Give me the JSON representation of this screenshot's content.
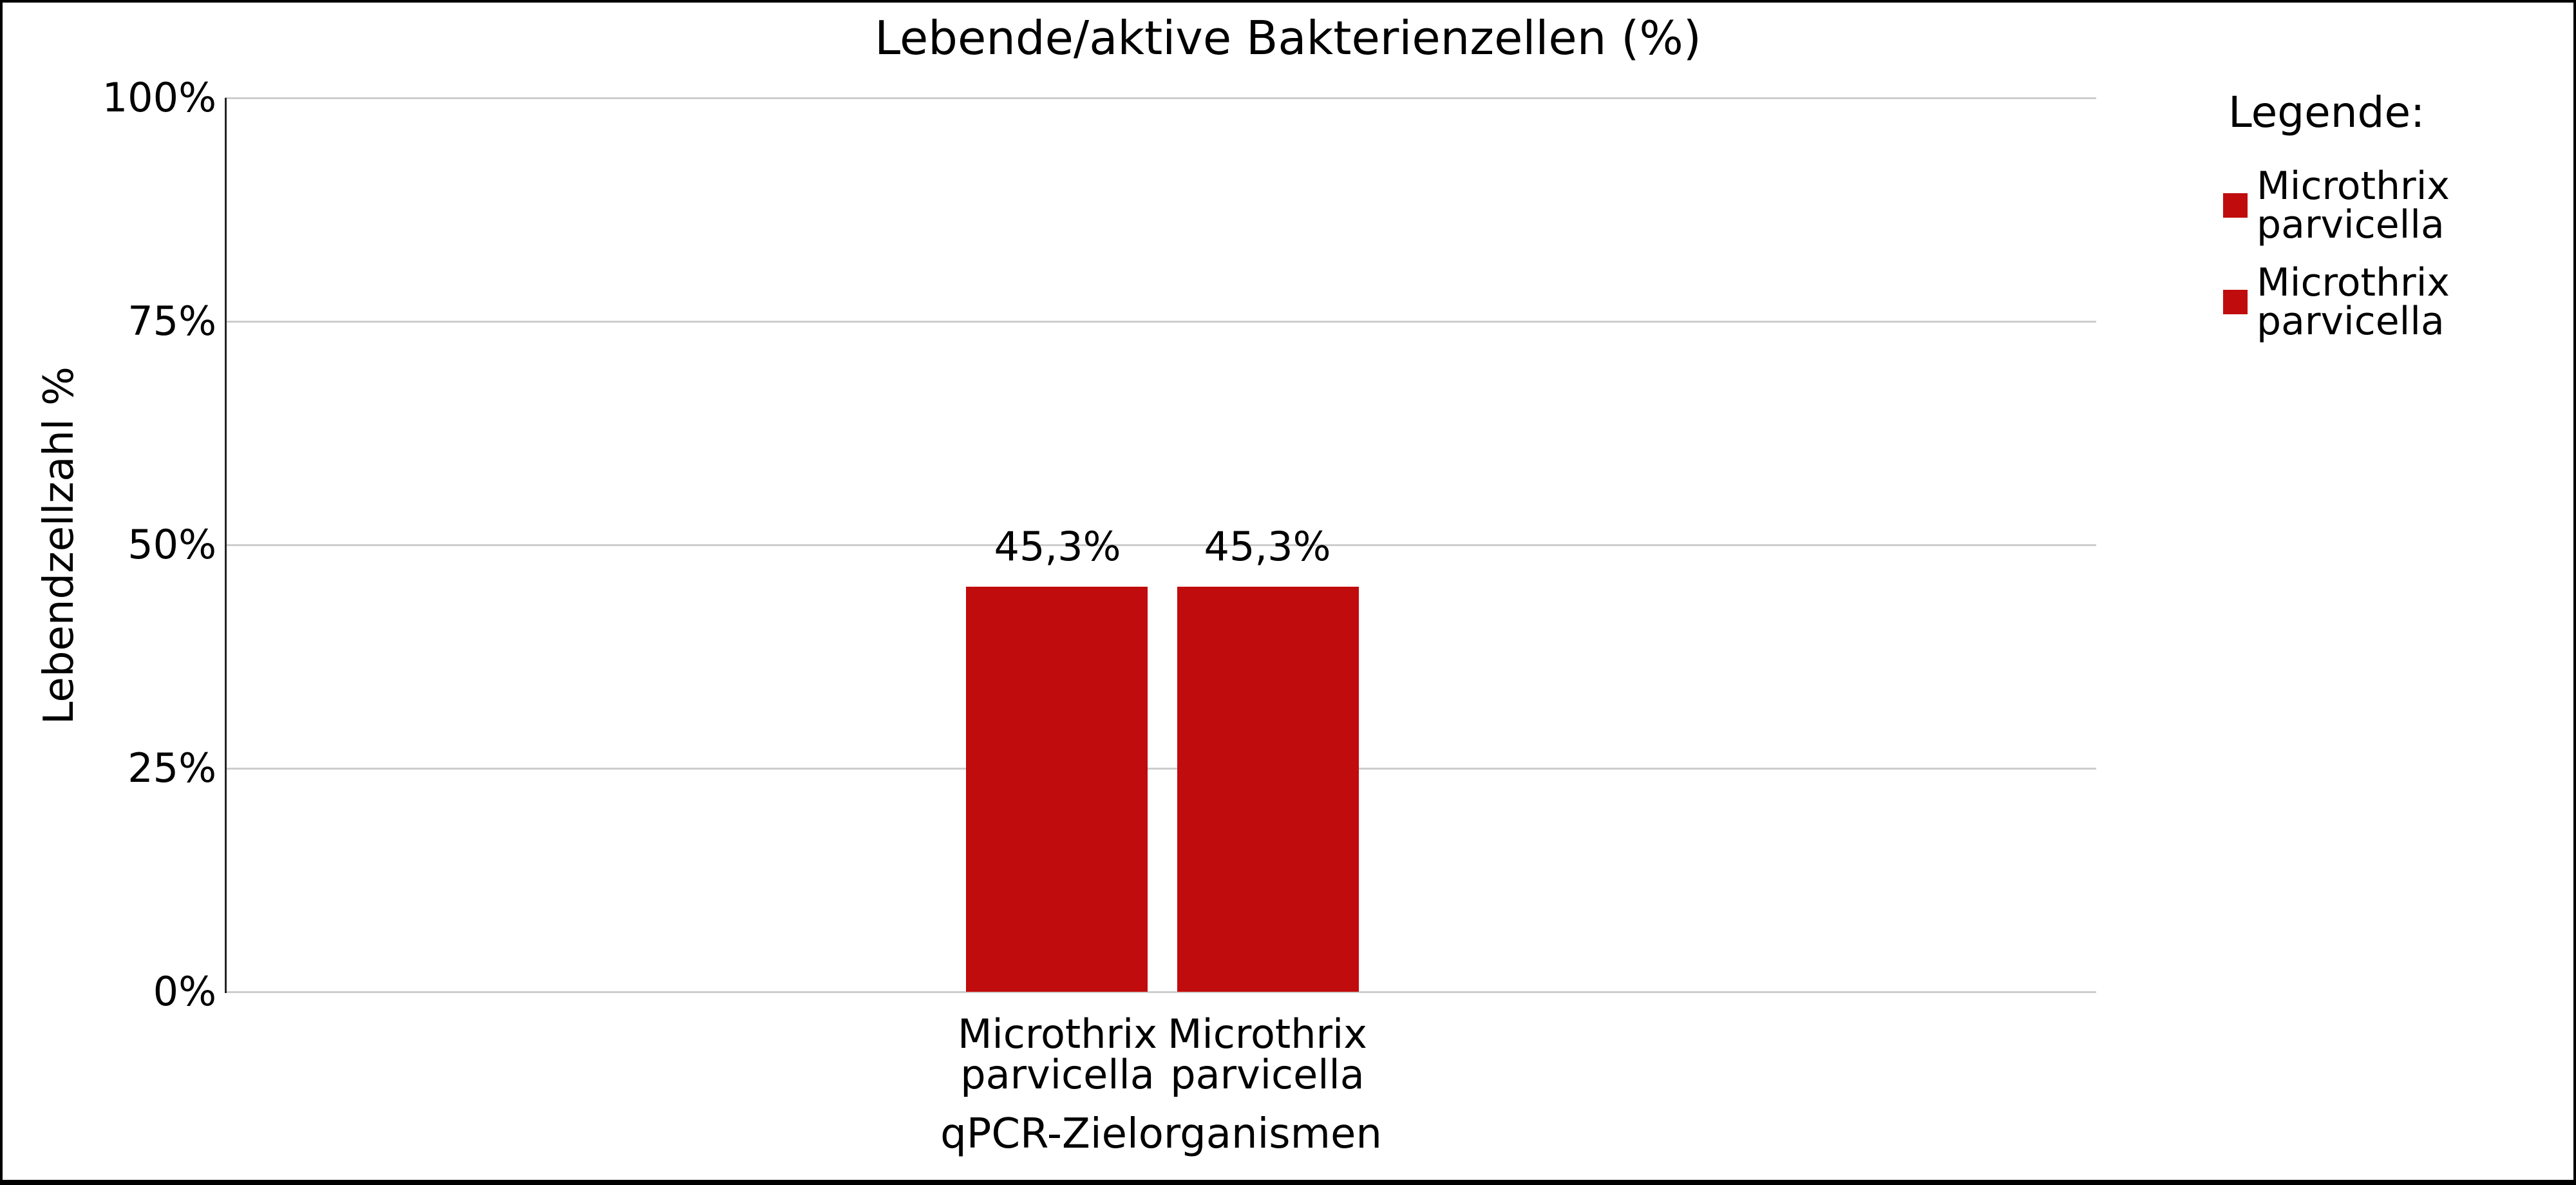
{
  "chart_data": {
    "type": "bar",
    "title": "Lebende/aktive Bakterienzellen (%)",
    "xlabel": "qPCR-Zielorganismen",
    "ylabel": "Lebendzellzahl %",
    "categories": [
      "Microthrix parvicella",
      "Microthrix parvicella"
    ],
    "values": [
      45.3,
      45.3
    ],
    "value_labels": [
      "45,3%",
      "45,3%"
    ],
    "ylim": [
      0,
      100
    ],
    "yticks": [
      "0%",
      "25%",
      "50%",
      "75%",
      "100%"
    ],
    "grid": "horizontal",
    "legend_position": "right",
    "bar_color": "#c00c0c",
    "gridline_color": "#cdcdcd",
    "legend": {
      "title": "Legende:",
      "entries": [
        {
          "line1": "Microthrix",
          "line2": "parvicella",
          "color": "#c00c0c"
        },
        {
          "line1": "Microthrix",
          "line2": "parvicella",
          "color": "#c00c0c"
        }
      ]
    }
  },
  "x_tick_labels": [
    {
      "line1": "Microthrix",
      "line2": "parvicella"
    },
    {
      "line1": "Microthrix",
      "line2": "parvicella"
    }
  ]
}
